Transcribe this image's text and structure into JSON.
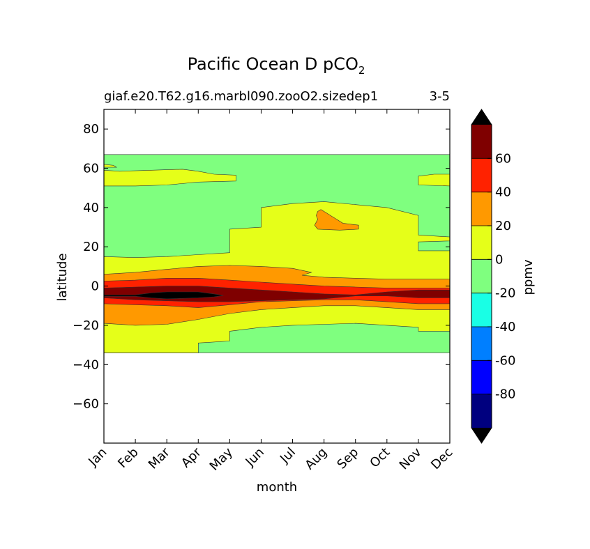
{
  "chart_data": {
    "type": "heatmap",
    "title": "Pacific Ocean D pCO",
    "title_subscript": "2",
    "subtitle_left": "giaf.e20.T62.g16.marbl090.zooO2.sizedep1",
    "subtitle_right": "3-5",
    "xlabel": "month",
    "ylabel": "latitude",
    "x_categories": [
      "Jan",
      "Feb",
      "Mar",
      "Apr",
      "May",
      "Jun",
      "Jul",
      "Aug",
      "Sep",
      "Oct",
      "Nov",
      "Dec"
    ],
    "ylim": [
      -80,
      90
    ],
    "y_ticks": [
      {
        "value": 80,
        "label": "80"
      },
      {
        "value": 60,
        "label": "60"
      },
      {
        "value": 40,
        "label": "40"
      },
      {
        "value": 20,
        "label": "20"
      },
      {
        "value": 0,
        "label": "0"
      },
      {
        "value": -20,
        "label": "−20"
      },
      {
        "value": -40,
        "label": "−40"
      },
      {
        "value": -60,
        "label": "−60"
      }
    ],
    "data_lat_range": [
      -34,
      67
    ],
    "colorbar": {
      "label": "ppmv",
      "levels": [
        -100,
        -80,
        -60,
        -40,
        -20,
        0,
        20,
        40,
        60,
        80
      ],
      "colors": [
        "#00007f",
        "#0000ff",
        "#007fff",
        "#19ffe5",
        "#7fff7f",
        "#e5ff19",
        "#ff9900",
        "#ff2200",
        "#7f0000"
      ],
      "under_color": "#000000",
      "over_color": "#000000",
      "tick_labels": [
        {
          "value": 60,
          "label": "60"
        },
        {
          "value": 40,
          "label": "40"
        },
        {
          "value": 20,
          "label": "20"
        },
        {
          "value": 0,
          "label": "0"
        },
        {
          "value": -20,
          "label": "-20"
        },
        {
          "value": -40,
          "label": "-40"
        },
        {
          "value": -60,
          "label": "-60"
        },
        {
          "value": -80,
          "label": "-80"
        }
      ]
    },
    "regions": [
      {
        "name": "background-0-to-minus20",
        "level": "-20 to 0",
        "color": "#7fff7f",
        "points": [
          [
            0,
            67
          ],
          [
            11,
            67
          ],
          [
            11,
            -34
          ],
          [
            0,
            -34
          ]
        ]
      },
      {
        "name": "north-subtropical-band",
        "level": "0 to 20",
        "color": "#e5ff19",
        "points": [
          [
            0,
            59
          ],
          [
            0.5,
            58.5
          ],
          [
            1.5,
            59
          ],
          [
            2.5,
            59.5
          ],
          [
            3,
            58.5
          ],
          [
            3.5,
            57
          ],
          [
            4.2,
            56.5
          ],
          [
            4.2,
            53.5
          ],
          [
            3,
            53
          ],
          [
            2,
            51.5
          ],
          [
            1,
            51
          ],
          [
            0,
            51
          ]
        ]
      },
      {
        "name": "north-subtropical-patch",
        "level": "0 to 20",
        "color": "#e5ff19",
        "points": [
          [
            0,
            62
          ],
          [
            0.3,
            61.5
          ],
          [
            0.4,
            60.5
          ],
          [
            0,
            60.5
          ]
        ]
      },
      {
        "name": "north-subtropical-east",
        "level": "0 to 20",
        "color": "#e5ff19",
        "points": [
          [
            10,
            56
          ],
          [
            10.5,
            57
          ],
          [
            11,
            57
          ],
          [
            11,
            51
          ],
          [
            10,
            51.5
          ],
          [
            10,
            53
          ]
        ]
      },
      {
        "name": "tropical-band",
        "level": "0 to 20",
        "color": "#e5ff19",
        "points": [
          [
            0,
            15
          ],
          [
            1,
            14.5
          ],
          [
            2,
            15
          ],
          [
            3,
            16
          ],
          [
            4,
            17
          ],
          [
            4,
            29
          ],
          [
            5,
            30
          ],
          [
            5,
            40
          ],
          [
            6,
            42
          ],
          [
            7,
            43
          ],
          [
            8,
            41.5
          ],
          [
            9,
            40
          ],
          [
            10,
            36
          ],
          [
            10,
            26
          ],
          [
            11,
            25
          ],
          [
            11,
            23
          ],
          [
            10,
            22.5
          ],
          [
            10,
            18
          ],
          [
            11,
            18
          ],
          [
            11,
            -23
          ],
          [
            10,
            -23
          ],
          [
            10,
            -21
          ],
          [
            9,
            -20
          ],
          [
            8,
            -19
          ],
          [
            7,
            -19.5
          ],
          [
            6,
            -20
          ],
          [
            5,
            -21
          ],
          [
            4,
            -23
          ],
          [
            4,
            -28
          ],
          [
            3,
            -29
          ],
          [
            3,
            -34
          ],
          [
            0,
            -34
          ]
        ]
      },
      {
        "name": "positive-20-40-band",
        "level": "20 to 40",
        "color": "#ff9900",
        "points": [
          [
            0,
            6
          ],
          [
            1,
            7
          ],
          [
            2,
            8.5
          ],
          [
            3,
            10
          ],
          [
            4,
            10.5
          ],
          [
            5,
            10
          ],
          [
            6,
            9
          ],
          [
            6.6,
            7
          ],
          [
            6.3,
            5.5
          ],
          [
            7,
            4.5
          ],
          [
            8,
            4
          ],
          [
            9,
            3.5
          ],
          [
            10,
            3.5
          ],
          [
            11,
            3.5
          ],
          [
            11,
            -12
          ],
          [
            10,
            -12
          ],
          [
            9,
            -11
          ],
          [
            8,
            -10
          ],
          [
            7,
            -10
          ],
          [
            6,
            -11
          ],
          [
            5,
            -12
          ],
          [
            4,
            -14
          ],
          [
            3,
            -17
          ],
          [
            2,
            -19.5
          ],
          [
            1,
            -20
          ],
          [
            0,
            -19
          ]
        ]
      },
      {
        "name": "positive-20-40-patch",
        "level": "20 to 40",
        "color": "#ff9900",
        "points": [
          [
            6.8,
            38
          ],
          [
            6.9,
            39
          ],
          [
            7.05,
            37.5
          ],
          [
            7.3,
            35
          ],
          [
            7.6,
            32
          ],
          [
            8.1,
            31
          ],
          [
            8.1,
            29
          ],
          [
            7.5,
            28.5
          ],
          [
            6.8,
            29
          ],
          [
            6.7,
            31
          ],
          [
            6.8,
            34
          ],
          [
            6.75,
            36
          ]
        ]
      },
      {
        "name": "positive-40-60-band",
        "level": "40 to 60",
        "color": "#ff2200",
        "points": [
          [
            0,
            2.5
          ],
          [
            1,
            3
          ],
          [
            2,
            4
          ],
          [
            3,
            4
          ],
          [
            4,
            3
          ],
          [
            5,
            2
          ],
          [
            6,
            1
          ],
          [
            7,
            0
          ],
          [
            8,
            -0.5
          ],
          [
            9,
            -1
          ],
          [
            10,
            -1
          ],
          [
            11,
            -1
          ],
          [
            11,
            -9
          ],
          [
            10,
            -9
          ],
          [
            9,
            -8
          ],
          [
            8,
            -7
          ],
          [
            7,
            -7
          ],
          [
            6,
            -7.5
          ],
          [
            5,
            -8
          ],
          [
            4,
            -9.5
          ],
          [
            3,
            -11
          ],
          [
            2,
            -10
          ],
          [
            1,
            -9.5
          ],
          [
            0,
            -9
          ]
        ]
      },
      {
        "name": "positive-60-80-band",
        "level": "60 to 80",
        "color": "#7f0000",
        "points": [
          [
            0,
            -1
          ],
          [
            1,
            -0.5
          ],
          [
            2,
            0
          ],
          [
            3,
            0
          ],
          [
            4,
            -1
          ],
          [
            5,
            -2
          ],
          [
            6,
            -3
          ],
          [
            7,
            -4
          ],
          [
            8,
            -4.5
          ],
          [
            9,
            -3
          ],
          [
            10,
            -2
          ],
          [
            11,
            -2
          ],
          [
            11,
            -6
          ],
          [
            10,
            -6
          ],
          [
            9,
            -5
          ],
          [
            8,
            -5
          ],
          [
            7,
            -6.5
          ],
          [
            6,
            -7
          ],
          [
            5,
            -7.5
          ],
          [
            4,
            -8
          ],
          [
            3,
            -8
          ],
          [
            2,
            -7.5
          ],
          [
            1,
            -7
          ],
          [
            0,
            -6
          ]
        ]
      },
      {
        "name": "over-80-core",
        "level": ">80",
        "color": "#000000",
        "points": [
          [
            0,
            -4.5
          ],
          [
            1,
            -4.5
          ],
          [
            1.5,
            -3.5
          ],
          [
            2,
            -3
          ],
          [
            3,
            -3
          ],
          [
            3.5,
            -4
          ],
          [
            3.8,
            -4.8
          ],
          [
            3.5,
            -5.5
          ],
          [
            3,
            -6
          ],
          [
            2,
            -6.5
          ],
          [
            1.5,
            -6
          ],
          [
            1,
            -5.2
          ],
          [
            0,
            -5.2
          ]
        ]
      }
    ]
  }
}
